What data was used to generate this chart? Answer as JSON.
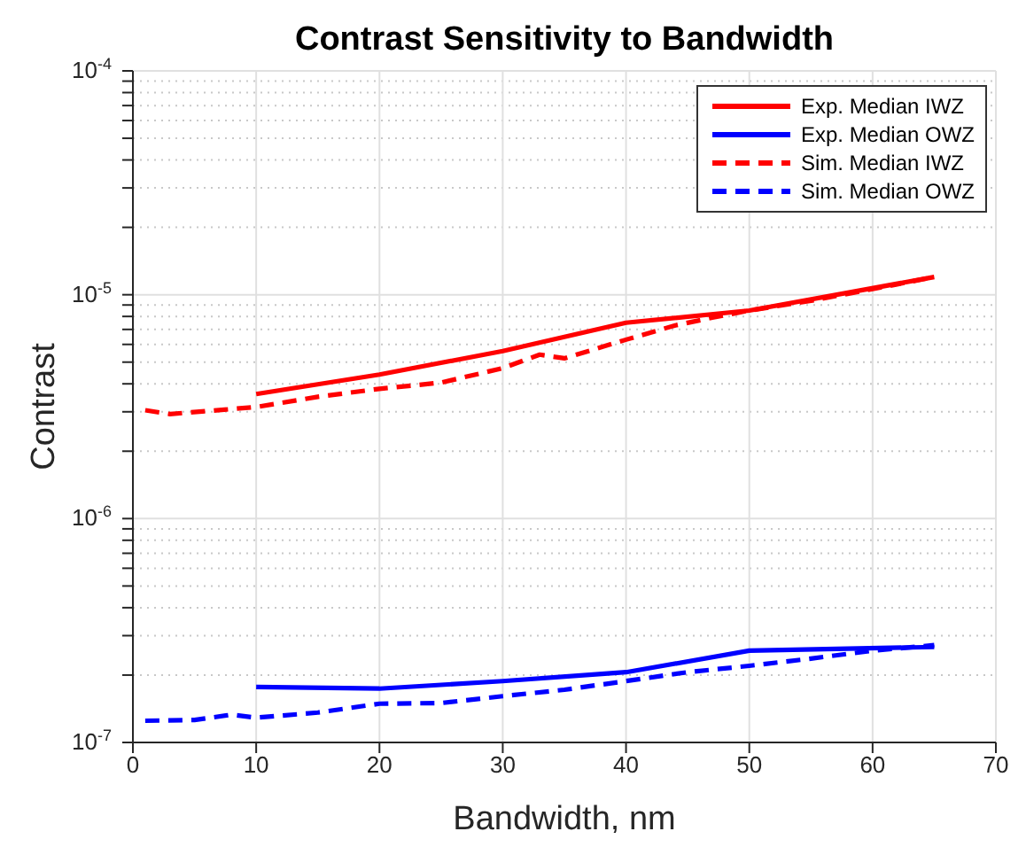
{
  "chart_data": {
    "type": "line",
    "title": "Contrast Sensitivity to Bandwidth",
    "xlabel": "Bandwidth, nm",
    "ylabel": "Contrast",
    "log": "y",
    "grid": true,
    "legend": "top right",
    "xlim": [
      0,
      70
    ],
    "xticks": [
      0,
      10,
      20,
      30,
      40,
      50,
      60,
      70
    ],
    "ylim": [
      1e-07,
      0.0001
    ],
    "yticks": [
      {
        "value": 1e-07,
        "label": "10$^{-7}$"
      },
      {
        "value": 2e-07,
        "label": null
      },
      {
        "value": 3e-07,
        "label": null
      },
      {
        "value": 4e-07,
        "label": null
      },
      {
        "value": 5e-07,
        "label": null
      },
      {
        "value": 6e-07,
        "label": null
      },
      {
        "value": 7e-07,
        "label": null
      },
      {
        "value": 8e-07,
        "label": null
      },
      {
        "value": 9e-07,
        "label": null
      },
      {
        "value": 1e-06,
        "label": "10$^{-6}$"
      },
      {
        "value": 2e-06,
        "label": null
      },
      {
        "value": 3e-06,
        "label": null
      },
      {
        "value": 4e-06,
        "label": null
      },
      {
        "value": 5e-06,
        "label": null
      },
      {
        "value": 6e-06,
        "label": null
      },
      {
        "value": 7e-06,
        "label": null
      },
      {
        "value": 8e-06,
        "label": null
      },
      {
        "value": 9e-06,
        "label": null
      },
      {
        "value": 1e-05,
        "label": "10$^{-5}$"
      },
      {
        "value": 2e-05,
        "label": null
      },
      {
        "value": 3e-05,
        "label": null
      },
      {
        "value": 4e-05,
        "label": null
      },
      {
        "value": 5e-05,
        "label": null
      },
      {
        "value": 6e-05,
        "label": null
      },
      {
        "value": 7e-05,
        "label": null
      },
      {
        "value": 8e-05,
        "label": null
      },
      {
        "value": 9e-05,
        "label": null
      },
      {
        "value": 0.0001,
        "label": "10$^{-4}$"
      }
    ],
    "series": [
      {
        "name": "Exp. Median IWZ",
        "color": "#ff0000",
        "line_style": "solid",
        "x": [
          10,
          20,
          30,
          40,
          50,
          65
        ],
        "values": [
          3.6e-06,
          4.4e-06,
          5.6e-06,
          7.5e-06,
          8.5e-06,
          1.2e-05
        ]
      },
      {
        "name": "Exp. Median OWZ",
        "color": "#0000ff",
        "line_style": "solid",
        "x": [
          10,
          20,
          30,
          40,
          50,
          65
        ],
        "values": [
          1.77e-07,
          1.74e-07,
          1.88e-07,
          2.06e-07,
          2.57e-07,
          2.67e-07
        ]
      },
      {
        "name": "Sim. Median IWZ",
        "color": "#ff0000",
        "line_style": "dashed",
        "x": [
          1,
          3,
          10,
          15,
          20,
          25,
          30,
          33,
          35,
          40,
          44,
          47,
          50,
          55,
          60,
          65
        ],
        "values": [
          3.05e-06,
          2.93e-06,
          3.15e-06,
          3.5e-06,
          3.8e-06,
          4.05e-06,
          4.7e-06,
          5.4e-06,
          5.2e-06,
          6.3e-06,
          7.3e-06,
          7.9e-06,
          8.5e-06,
          9.4e-06,
          1.06e-05,
          1.2e-05
        ]
      },
      {
        "name": "Sim. Median OWZ",
        "color": "#0000ff",
        "line_style": "dashed",
        "x": [
          1,
          5,
          8,
          10,
          15,
          20,
          25,
          30,
          35,
          40,
          45,
          50,
          55,
          60,
          65
        ],
        "values": [
          1.25e-07,
          1.26e-07,
          1.33e-07,
          1.29e-07,
          1.36e-07,
          1.49e-07,
          1.5e-07,
          1.61e-07,
          1.72e-07,
          1.88e-07,
          2.06e-07,
          2.2e-07,
          2.37e-07,
          2.57e-07,
          2.72e-07
        ]
      }
    ]
  }
}
